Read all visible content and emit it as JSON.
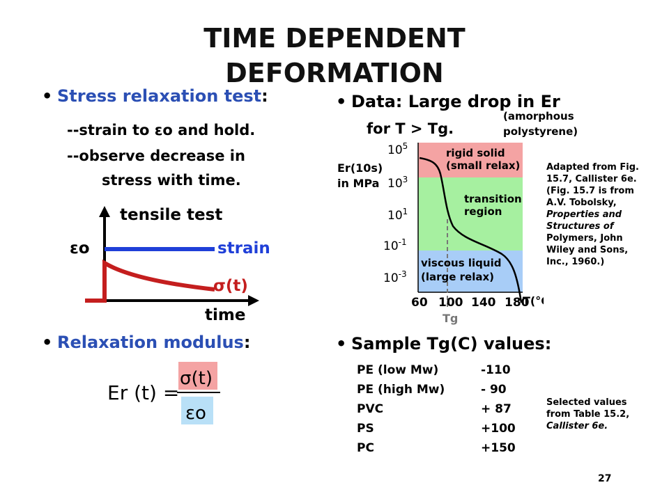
{
  "title": {
    "line1": "TIME DEPENDENT",
    "line2": "DEFORMATION"
  },
  "left": {
    "bullet1": "Stress relaxation test",
    "bullet1_colon": ":",
    "line1": "--strain to εo and hold.",
    "line2": "--observe decrease in",
    "line3": "stress with time.",
    "diagram": {
      "tensile": "tensile test",
      "eps": "εo",
      "strain": "strain",
      "sigma": "σ(t)",
      "time": "time"
    },
    "bullet2": "Relaxation modulus",
    "bullet2_colon": ":",
    "formula": {
      "lhs": "Er (t) =",
      "num": "σ(t)",
      "den": "εo"
    }
  },
  "right": {
    "bullet1": "Data: Large drop in Er",
    "bullet1_line2": "for T > Tg.",
    "note": [
      "(amorphous",
      "polystyrene)"
    ],
    "chart": {
      "ylabel1": "Er(10s)",
      "ylabel2": "in MPa",
      "yticks": [
        "10^5",
        "10^3",
        "10^1",
        "10^-1",
        "10^-3"
      ],
      "xticks": [
        "60",
        "100",
        "140",
        "180"
      ],
      "xlabel": "T(°C)",
      "tg_label": "Tg",
      "regions": [
        {
          "line1": "rigid solid",
          "line2": "(small relax)",
          "color": "#f4a3a3"
        },
        {
          "line1": "transition",
          "line2": "region",
          "color": "#a6f0a0"
        },
        {
          "line1": "viscous liquid",
          "line2": "(large relax)",
          "color": "#a8cdf7"
        }
      ]
    },
    "adapted": [
      "Adapted from Fig.",
      "15.7, Callister 6e.",
      "(Fig. 15.7 is from",
      "A.V. Tobolsky,",
      "Properties and",
      "Structures of",
      "Polymers, John",
      "Wiley and Sons,",
      "Inc., 1960.)"
    ],
    "bullet2": "Sample Tg(C) values:",
    "table": [
      {
        "name": "PE (low Mw)",
        "value": "-110"
      },
      {
        "name": "PE (high Mw)",
        "value": "- 90"
      },
      {
        "name": "PVC",
        "value": "+ 87"
      },
      {
        "name": "PS",
        "value": "+100"
      },
      {
        "name": "PC",
        "value": "+150"
      }
    ],
    "selected": [
      "Selected values",
      "from Table 15.2,",
      "Callister 6e."
    ]
  },
  "page_number": "27"
}
